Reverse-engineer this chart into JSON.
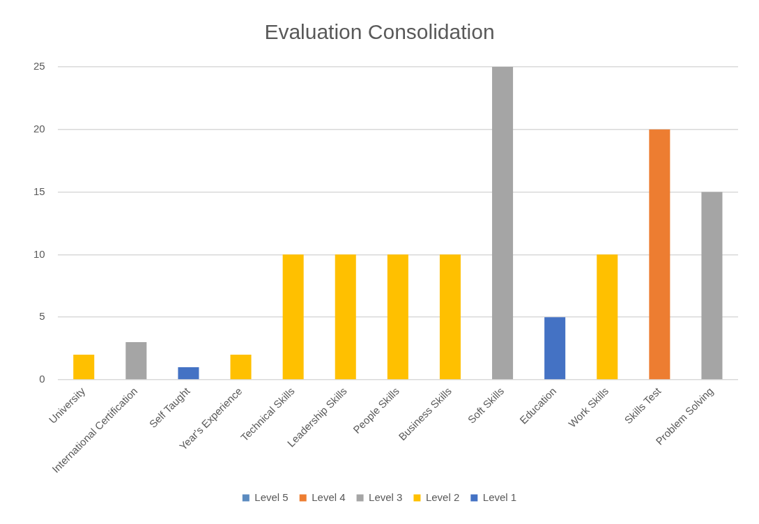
{
  "chart_data": {
    "type": "bar",
    "title": "Evaluation Consolidation",
    "categories": [
      "University",
      "International Certification",
      "Self Taught",
      "Year's Experience",
      "Technical Skills",
      "Leadership Skills",
      "People Skills",
      "Business Skills",
      "Soft Skills",
      "Education",
      "Work Skills",
      "Skills Test",
      "Problem Solving"
    ],
    "series": [
      {
        "name": "Level 5",
        "color": "#5b8bc0",
        "values": [
          null,
          null,
          null,
          null,
          null,
          null,
          null,
          null,
          null,
          null,
          null,
          null,
          null
        ]
      },
      {
        "name": "Level 4",
        "color": "#ed7d31",
        "values": [
          null,
          null,
          null,
          null,
          null,
          null,
          null,
          null,
          null,
          null,
          null,
          20,
          null
        ]
      },
      {
        "name": "Level 3",
        "color": "#a5a5a5",
        "values": [
          null,
          3,
          null,
          null,
          null,
          null,
          null,
          null,
          25,
          null,
          null,
          null,
          15
        ]
      },
      {
        "name": "Level 2",
        "color": "#ffc000",
        "values": [
          2,
          null,
          null,
          2,
          10,
          10,
          10,
          10,
          null,
          null,
          10,
          null,
          null
        ]
      },
      {
        "name": "Level 1",
        "color": "#4472c4",
        "values": [
          null,
          null,
          1,
          null,
          null,
          null,
          null,
          null,
          null,
          5,
          null,
          null,
          null
        ]
      }
    ],
    "ylim": [
      0,
      25
    ],
    "yticks": [
      0,
      5,
      10,
      15,
      20,
      25
    ],
    "grid": "y",
    "legend": "bottom"
  }
}
